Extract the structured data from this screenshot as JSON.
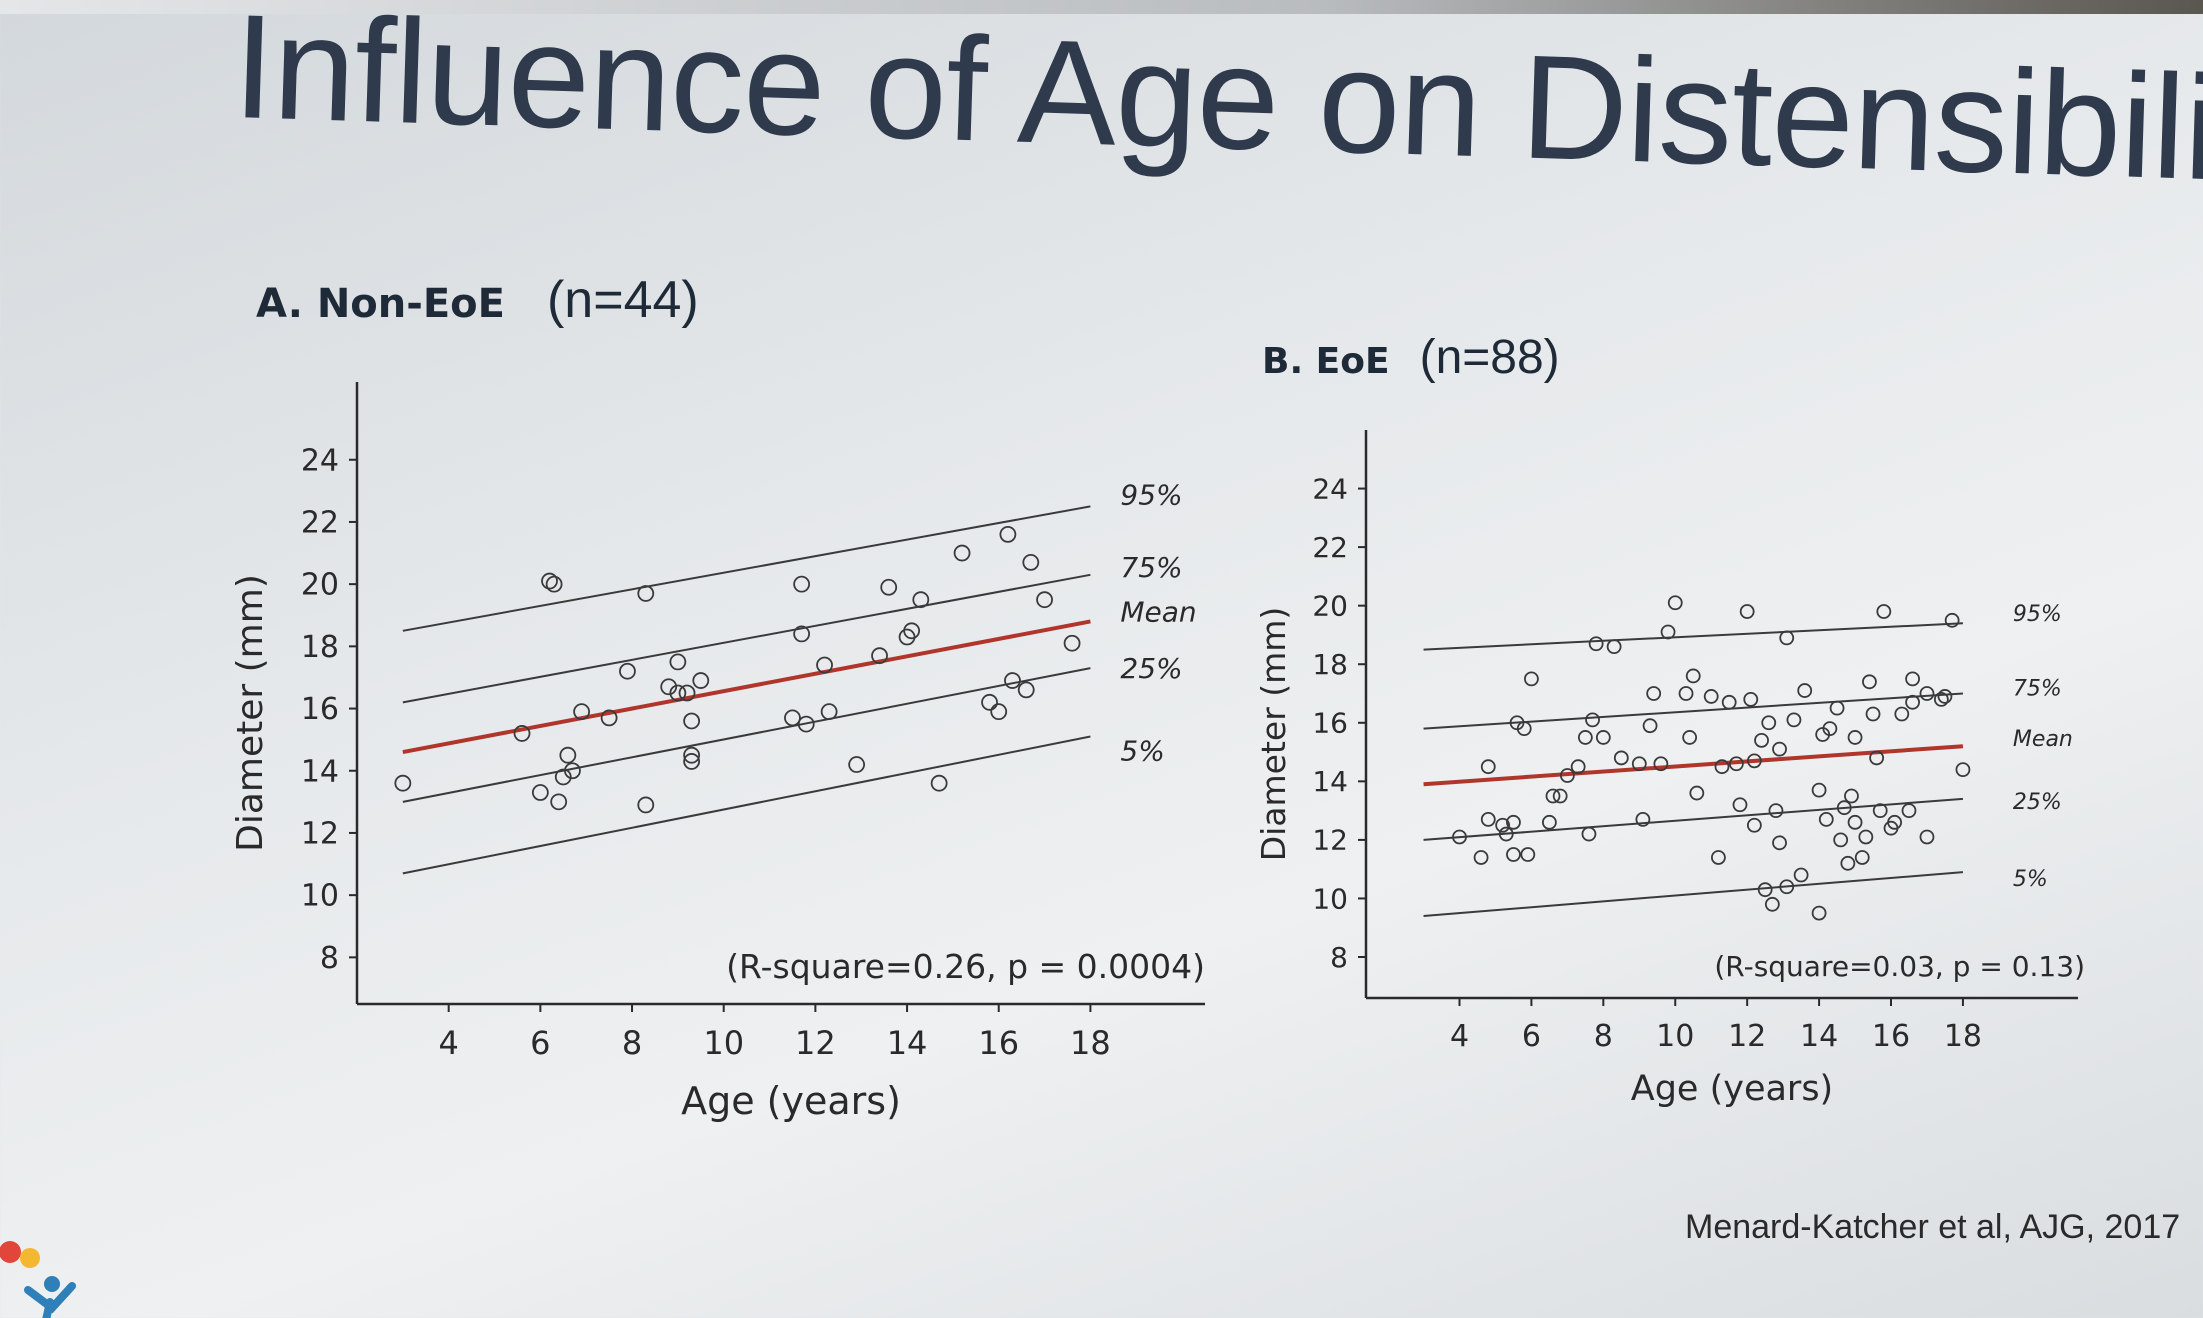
{
  "slide": {
    "title": "Influence of Age on Distensibility",
    "citation": "Menard-Katcher et al, AJG, 2017"
  },
  "colors": {
    "title": "#2f3b4d",
    "axis": "#2a2a2a",
    "percentile_line": "#3a3a3a",
    "mean_line": "#b0352b",
    "points": "#3a3a3a"
  },
  "chart_data": [
    {
      "type": "scatter",
      "title": "A. Non-EoE",
      "subtitle": "(n=44)",
      "xlabel": "Age (years)",
      "ylabel": "Diameter (mm)",
      "xlim": [
        2,
        20.5
      ],
      "ylim": [
        6.5,
        26.5
      ],
      "xticks": [
        4,
        6,
        8,
        10,
        12,
        14,
        16,
        18
      ],
      "yticks": [
        8,
        10,
        12,
        14,
        16,
        18,
        20,
        22,
        24
      ],
      "annotation": "(R-square=0.26, p = 0.0004)",
      "grid": false,
      "percentile_lines": [
        {
          "name": "95%",
          "x": [
            3,
            18
          ],
          "y": [
            18.5,
            22.5
          ]
        },
        {
          "name": "75%",
          "x": [
            3,
            18
          ],
          "y": [
            16.2,
            20.3
          ]
        },
        {
          "name": "Mean",
          "x": [
            3,
            18
          ],
          "y": [
            14.6,
            18.8
          ],
          "highlight": true
        },
        {
          "name": "25%",
          "x": [
            3,
            18
          ],
          "y": [
            13.0,
            17.3
          ]
        },
        {
          "name": "5%",
          "x": [
            3,
            18
          ],
          "y": [
            10.7,
            15.1
          ]
        }
      ],
      "points": [
        [
          3.0,
          13.6
        ],
        [
          5.6,
          15.2
        ],
        [
          6.0,
          13.3
        ],
        [
          6.2,
          20.1
        ],
        [
          6.3,
          20.0
        ],
        [
          6.4,
          13.0
        ],
        [
          6.5,
          13.8
        ],
        [
          6.6,
          14.5
        ],
        [
          6.7,
          14.0
        ],
        [
          6.9,
          15.9
        ],
        [
          7.5,
          15.7
        ],
        [
          7.9,
          17.2
        ],
        [
          8.3,
          12.9
        ],
        [
          8.3,
          19.7
        ],
        [
          8.8,
          16.7
        ],
        [
          9.0,
          16.5
        ],
        [
          9.0,
          17.5
        ],
        [
          9.2,
          16.5
        ],
        [
          9.3,
          15.6
        ],
        [
          9.3,
          14.3
        ],
        [
          9.3,
          14.5
        ],
        [
          9.5,
          16.9
        ],
        [
          11.5,
          15.7
        ],
        [
          11.7,
          20.0
        ],
        [
          11.7,
          18.4
        ],
        [
          11.8,
          15.5
        ],
        [
          12.2,
          17.4
        ],
        [
          12.3,
          15.9
        ],
        [
          12.9,
          14.2
        ],
        [
          13.4,
          17.7
        ],
        [
          13.6,
          19.9
        ],
        [
          14.0,
          18.3
        ],
        [
          14.1,
          18.5
        ],
        [
          14.3,
          19.5
        ],
        [
          14.7,
          13.6
        ],
        [
          15.2,
          21.0
        ],
        [
          15.8,
          16.2
        ],
        [
          16.0,
          15.9
        ],
        [
          16.2,
          21.6
        ],
        [
          16.3,
          16.9
        ],
        [
          16.6,
          16.6
        ],
        [
          16.7,
          20.7
        ],
        [
          17.0,
          19.5
        ],
        [
          17.6,
          18.1
        ]
      ]
    },
    {
      "type": "scatter",
      "title": "B. EoE",
      "subtitle": "(n=88)",
      "xlabel": "Age (years)",
      "ylabel": "Diameter (mm)",
      "xlim": [
        1.4,
        21.2
      ],
      "ylim": [
        6.6,
        26.0
      ],
      "xticks": [
        4,
        6,
        8,
        10,
        12,
        14,
        16,
        18
      ],
      "yticks": [
        8,
        10,
        12,
        14,
        16,
        18,
        20,
        22,
        24
      ],
      "annotation": "(R-square=0.03, p = 0.13)",
      "grid": false,
      "percentile_lines": [
        {
          "name": "95%",
          "x": [
            3,
            18
          ],
          "y": [
            18.5,
            19.4
          ]
        },
        {
          "name": "75%",
          "x": [
            3,
            18
          ],
          "y": [
            15.8,
            17.0
          ]
        },
        {
          "name": "Mean",
          "x": [
            3,
            18
          ],
          "y": [
            13.9,
            15.2
          ],
          "highlight": true
        },
        {
          "name": "25%",
          "x": [
            3,
            18
          ],
          "y": [
            12.0,
            13.4
          ]
        },
        {
          "name": "5%",
          "x": [
            3,
            18
          ],
          "y": [
            9.4,
            10.9
          ]
        }
      ],
      "points": [
        [
          4.0,
          12.1
        ],
        [
          4.6,
          11.4
        ],
        [
          4.8,
          14.5
        ],
        [
          4.8,
          12.7
        ],
        [
          5.2,
          12.5
        ],
        [
          5.3,
          12.2
        ],
        [
          5.5,
          12.6
        ],
        [
          5.5,
          11.5
        ],
        [
          5.6,
          16.0
        ],
        [
          5.8,
          15.8
        ],
        [
          5.9,
          11.5
        ],
        [
          6.0,
          17.5
        ],
        [
          6.5,
          12.6
        ],
        [
          6.6,
          13.5
        ],
        [
          6.8,
          13.5
        ],
        [
          7.0,
          14.2
        ],
        [
          7.3,
          14.5
        ],
        [
          7.5,
          15.5
        ],
        [
          7.6,
          12.2
        ],
        [
          7.7,
          16.1
        ],
        [
          7.8,
          18.7
        ],
        [
          8.0,
          15.5
        ],
        [
          8.3,
          18.6
        ],
        [
          8.5,
          14.8
        ],
        [
          9.0,
          14.6
        ],
        [
          9.1,
          12.7
        ],
        [
          9.3,
          15.9
        ],
        [
          9.4,
          17.0
        ],
        [
          9.6,
          14.6
        ],
        [
          9.8,
          19.1
        ],
        [
          10.0,
          20.1
        ],
        [
          10.3,
          17.0
        ],
        [
          10.4,
          15.5
        ],
        [
          10.5,
          17.6
        ],
        [
          10.6,
          13.6
        ],
        [
          11.0,
          16.9
        ],
        [
          11.2,
          11.4
        ],
        [
          11.3,
          14.5
        ],
        [
          11.5,
          16.7
        ],
        [
          11.7,
          14.6
        ],
        [
          11.8,
          13.2
        ],
        [
          12.0,
          19.8
        ],
        [
          12.1,
          16.8
        ],
        [
          12.2,
          14.7
        ],
        [
          12.2,
          12.5
        ],
        [
          12.4,
          15.4
        ],
        [
          12.5,
          10.3
        ],
        [
          12.6,
          16.0
        ],
        [
          12.7,
          9.8
        ],
        [
          12.8,
          13.0
        ],
        [
          12.9,
          15.1
        ],
        [
          12.9,
          11.9
        ],
        [
          13.1,
          10.4
        ],
        [
          13.1,
          18.9
        ],
        [
          13.3,
          16.1
        ],
        [
          13.5,
          10.8
        ],
        [
          13.6,
          17.1
        ],
        [
          14.0,
          9.5
        ],
        [
          14.0,
          13.7
        ],
        [
          14.1,
          15.6
        ],
        [
          14.2,
          12.7
        ],
        [
          14.3,
          15.8
        ],
        [
          14.5,
          16.5
        ],
        [
          14.6,
          12.0
        ],
        [
          14.7,
          13.1
        ],
        [
          14.8,
          11.2
        ],
        [
          14.9,
          13.5
        ],
        [
          15.0,
          15.5
        ],
        [
          15.0,
          12.6
        ],
        [
          15.2,
          11.4
        ],
        [
          15.3,
          12.1
        ],
        [
          15.4,
          17.4
        ],
        [
          15.5,
          16.3
        ],
        [
          15.6,
          14.8
        ],
        [
          15.7,
          13.0
        ],
        [
          15.8,
          19.8
        ],
        [
          16.0,
          12.4
        ],
        [
          16.1,
          12.6
        ],
        [
          16.3,
          16.3
        ],
        [
          16.5,
          13.0
        ],
        [
          16.6,
          17.5
        ],
        [
          16.6,
          16.7
        ],
        [
          17.0,
          17.0
        ],
        [
          17.0,
          12.1
        ],
        [
          17.4,
          16.8
        ],
        [
          17.5,
          16.9
        ],
        [
          17.7,
          19.5
        ],
        [
          18.0,
          14.4
        ]
      ]
    }
  ]
}
